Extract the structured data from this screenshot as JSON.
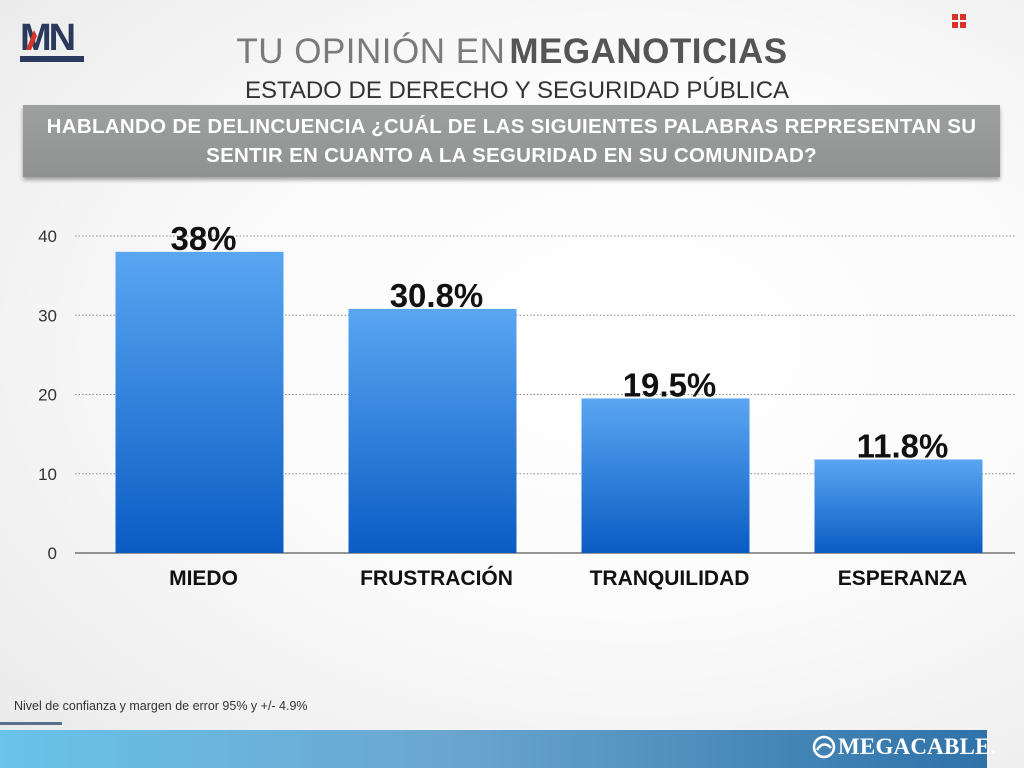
{
  "header": {
    "logo_text": "MN",
    "title_light": "TU OPINIÓN EN",
    "title_bold": "MEGANOTICIAS",
    "subtitle": "ESTADO DE DERECHO Y SEGURIDAD PÚBLICA",
    "question": "HABLANDO DE DELINCUENCIA ¿CUÁL DE LAS SIGUIENTES PALABRAS REPRESENTAN SU SENTIR EN CUANTO A LA SEGURIDAD EN SU COMUNIDAD?"
  },
  "chart_data": {
    "type": "bar",
    "categories": [
      "MIEDO",
      "FRUSTRACIÓN",
      "TRANQUILIDAD",
      "ESPERANZA"
    ],
    "values": [
      38,
      30.8,
      19.5,
      11.8
    ],
    "value_labels": [
      "38%",
      "30.8%",
      "19.5%",
      "11.8%"
    ],
    "yticks": [
      "0",
      "10",
      "20",
      "30",
      "40"
    ],
    "ylim": [
      0,
      40
    ],
    "grid": true,
    "bar_color_top": "#5aa6f2",
    "bar_color_bottom": "#0a5cc4"
  },
  "footer": {
    "note": "Nivel de confianza y margen de error 95% y +/- 4.9%",
    "brand": "MEGACABLE."
  },
  "colors": {
    "accent_red": "#d9342b",
    "logo_navy": "#2b3a5c"
  }
}
